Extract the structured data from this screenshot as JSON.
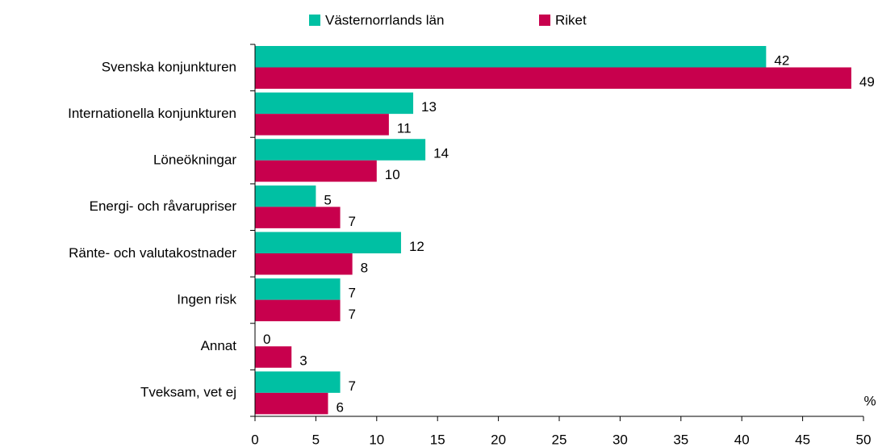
{
  "chart_data": {
    "type": "hbar",
    "categories": [
      "Svenska konjunkturen",
      "Internationella konjunkturen",
      "Löneökningar",
      "Energi- och råvarupriser",
      "Ränte- och valutakostnader",
      "Ingen risk",
      "Annat",
      "Tveksam, vet ej"
    ],
    "series": [
      {
        "name": "Västernorrlands län",
        "color": "#00c0a3",
        "values": [
          42,
          13,
          14,
          5,
          12,
          7,
          0,
          7
        ]
      },
      {
        "name": "Riket",
        "color": "#c8004d",
        "values": [
          49,
          11,
          10,
          7,
          8,
          7,
          3,
          6
        ]
      }
    ],
    "xlim": [
      0,
      50
    ],
    "xticks": [
      0,
      5,
      10,
      15,
      20,
      25,
      30,
      35,
      40,
      45,
      50
    ],
    "xlabel": "%",
    "legend": "top"
  }
}
